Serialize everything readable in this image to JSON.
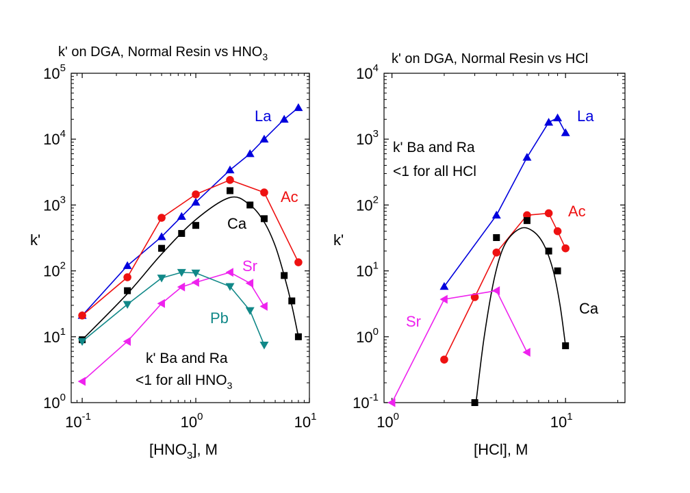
{
  "chart_data": [
    {
      "type": "line",
      "title_main": "k' on DGA, Normal Resin vs HNO",
      "title_sub": "3",
      "xlabel_pre": "[HNO",
      "xlabel_sub": "3",
      "xlabel_post": "], M",
      "ylabel": "k'",
      "x_scale": "log",
      "y_scale": "log",
      "xlim": [
        0.08,
        10
      ],
      "ylim": [
        1,
        100000
      ],
      "x_ticks": [
        {
          "base": "10",
          "exp": "-1",
          "value": 0.1
        },
        {
          "base": "10",
          "exp": "0",
          "value": 1
        },
        {
          "base": "10",
          "exp": "1",
          "value": 10
        }
      ],
      "y_ticks": [
        {
          "base": "10",
          "exp": "0",
          "value": 1
        },
        {
          "base": "10",
          "exp": "1",
          "value": 10
        },
        {
          "base": "10",
          "exp": "2",
          "value": 100
        },
        {
          "base": "10",
          "exp": "3",
          "value": 1000
        },
        {
          "base": "10",
          "exp": "4",
          "value": 10000
        },
        {
          "base": "10",
          "exp": "5",
          "value": 100000
        }
      ],
      "note_line1": "k' Ba and Ra",
      "note_line2_pre": "<1 for all HNO",
      "note_line2_sub": "3",
      "series": [
        {
          "name": "La",
          "color": "#0000dd",
          "marker": "triangle-up",
          "x": [
            0.1,
            0.25,
            0.5,
            0.75,
            1,
            2,
            3,
            4,
            6,
            8
          ],
          "y": [
            21,
            120,
            330,
            670,
            1100,
            3400,
            6000,
            10000,
            20000,
            30000
          ]
        },
        {
          "name": "Ac",
          "color": "#ee1111",
          "marker": "circle",
          "x": [
            0.1,
            0.25,
            0.5,
            1,
            2,
            4,
            8
          ],
          "y": [
            21,
            80,
            640,
            1450,
            2400,
            1550,
            135
          ]
        },
        {
          "name": "Ca",
          "color": "#000000",
          "marker": "square",
          "fit": "smooth",
          "x": [
            0.1,
            0.25,
            0.5,
            0.75,
            1,
            2,
            3,
            4,
            6,
            7,
            8
          ],
          "y": [
            9,
            50,
            220,
            370,
            490,
            1650,
            1000,
            620,
            85,
            35,
            10
          ]
        },
        {
          "name": "Sr",
          "color": "#ee22ee",
          "marker": "triangle-left",
          "x": [
            0.1,
            0.25,
            0.5,
            0.75,
            1,
            2,
            3,
            4
          ],
          "y": [
            2.1,
            8.5,
            32,
            57,
            67,
            95,
            65,
            29
          ]
        },
        {
          "name": "Pb",
          "color": "#118888",
          "marker": "triangle-down",
          "x": [
            0.1,
            0.25,
            0.5,
            0.75,
            1,
            2,
            3,
            4
          ],
          "y": [
            8.5,
            31,
            78,
            95,
            93,
            58,
            25,
            7.5
          ]
        }
      ]
    },
    {
      "type": "line",
      "title_main": "k' on DGA, Normal Resin vs HCl",
      "title_sub": "",
      "xlabel_pre": "[HCl], M",
      "xlabel_sub": "",
      "xlabel_post": "",
      "ylabel": "k'",
      "x_scale": "log",
      "y_scale": "log",
      "xlim": [
        0.9,
        22
      ],
      "ylim": [
        0.1,
        10000
      ],
      "x_ticks": [
        {
          "base": "10",
          "exp": "0",
          "value": 1
        },
        {
          "base": "10",
          "exp": "1",
          "value": 10
        }
      ],
      "y_ticks": [
        {
          "base": "10",
          "exp": "-1",
          "value": 0.1
        },
        {
          "base": "10",
          "exp": "0",
          "value": 1
        },
        {
          "base": "10",
          "exp": "1",
          "value": 10
        },
        {
          "base": "10",
          "exp": "2",
          "value": 100
        },
        {
          "base": "10",
          "exp": "3",
          "value": 1000
        },
        {
          "base": "10",
          "exp": "4",
          "value": 10000
        }
      ],
      "y_tick_format": "decimal",
      "y_tick_mantissas": [
        "1.0",
        "1.0",
        "1.0",
        "1.0",
        "1.0",
        "1.0"
      ],
      "note_line1": "k' Ba and Ra",
      "note_line2_pre": "<1 for all HCl",
      "note_line2_sub": "",
      "series": [
        {
          "name": "La",
          "color": "#0000dd",
          "marker": "triangle-up",
          "x": [
            2,
            4,
            6,
            8,
            9,
            10
          ],
          "y": [
            5.8,
            70,
            530,
            1800,
            2100,
            1250
          ]
        },
        {
          "name": "Ac",
          "color": "#ee1111",
          "marker": "circle",
          "x": [
            2,
            3,
            4,
            6,
            8,
            9,
            10
          ],
          "y": [
            0.45,
            4,
            19,
            70,
            75,
            40,
            22
          ]
        },
        {
          "name": "Ca",
          "color": "#000000",
          "marker": "square",
          "fit": "smooth",
          "x": [
            3,
            4,
            6,
            8,
            9,
            10
          ],
          "y": [
            0.1,
            32,
            58,
            20,
            10,
            0.73
          ]
        },
        {
          "name": "Sr",
          "color": "#ee22ee",
          "marker": "triangle-left",
          "x": [
            1,
            2,
            4,
            6
          ],
          "y": [
            0.1,
            3.7,
            5,
            0.58
          ]
        }
      ]
    }
  ]
}
